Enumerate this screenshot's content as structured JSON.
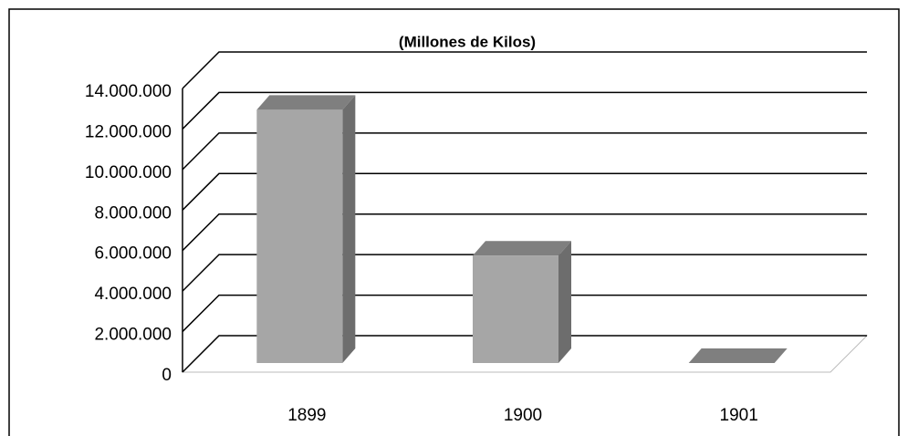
{
  "chart_data": {
    "type": "bar3d",
    "title": "(Millones de Kilos)",
    "categories": [
      "1899",
      "1900",
      "1901"
    ],
    "values": [
      12500000,
      5300000,
      0
    ],
    "color": "#a6a6a6",
    "ylim": [
      0,
      14000000
    ],
    "yticks": [
      0,
      {
        "value": 2000000,
        "label": "2.000.000"
      },
      {
        "value": 4000000,
        "label": "4.000.000"
      },
      {
        "value": 6000000,
        "label": "6.000.000"
      },
      {
        "value": 8000000,
        "label": "8.000.000"
      },
      {
        "value": 10000000,
        "label": "10.000.000"
      },
      {
        "value": 12000000,
        "label": "12.000.000"
      },
      {
        "value": 14000000,
        "label": "14.000.000"
      }
    ],
    "grid": true
  }
}
